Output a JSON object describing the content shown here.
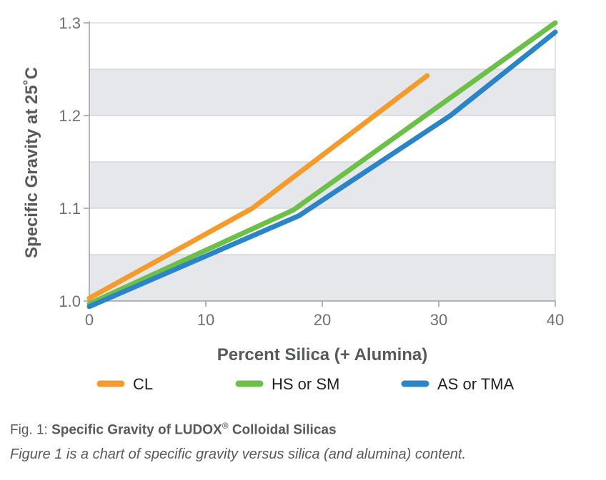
{
  "chart_data": {
    "type": "line",
    "xlabel": "Percent Silica (+ Alumina)",
    "ylabel": "Specific Gravity at 25˚C",
    "xlim": [
      0,
      40
    ],
    "ylim": [
      1.0,
      1.3
    ],
    "xticks": [
      "0",
      "10",
      "20",
      "30",
      "40"
    ],
    "yticks": [
      "1.0",
      "1.1",
      "1.2",
      "1.3"
    ],
    "grid": true,
    "background": "alternating gray bands",
    "legend_position": "bottom",
    "series": [
      {
        "name": "CL",
        "color": "#f39c2d",
        "x": [
          0,
          14,
          29
        ],
        "y": [
          1.003,
          1.1,
          1.243
        ]
      },
      {
        "name": "HS or SM",
        "color": "#6cc04a",
        "x": [
          0,
          17.5,
          40
        ],
        "y": [
          0.997,
          1.098,
          1.3
        ]
      },
      {
        "name": "AS or TMA",
        "color": "#2a84c7",
        "x": [
          0,
          18,
          31,
          40
        ],
        "y": [
          0.994,
          1.092,
          1.2,
          1.29
        ]
      }
    ]
  },
  "caption": {
    "prefix": "Fig. 1: ",
    "title_before_mark": "Specific Gravity of LUDOX",
    "registered_mark": "®",
    "title_after_mark": " Colloidal Silicas",
    "description": "Figure 1 is a chart of specific gravity versus silica (and alumina) content."
  }
}
